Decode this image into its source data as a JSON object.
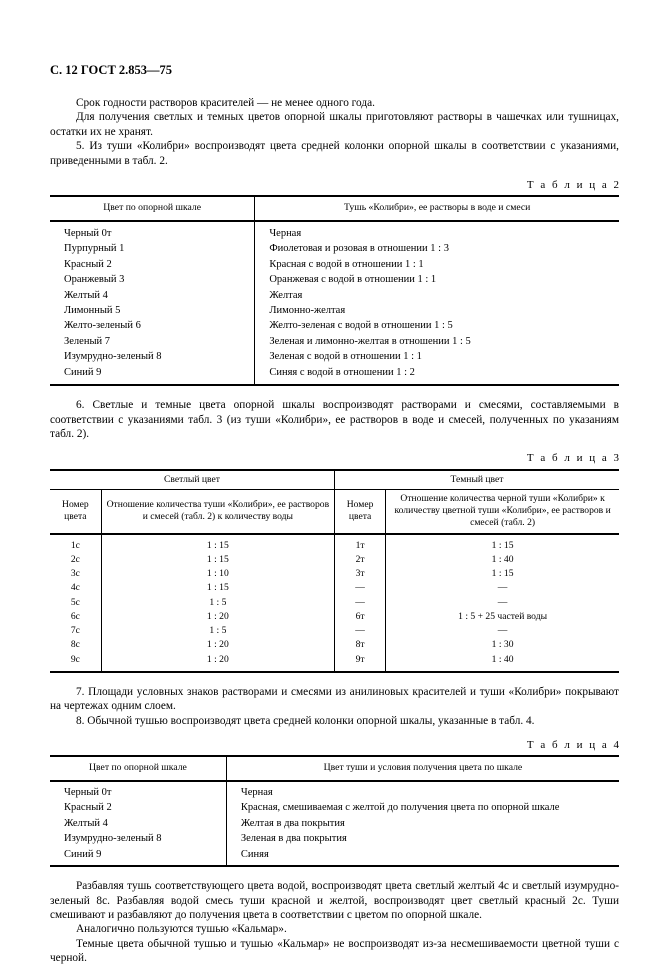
{
  "header": "С. 12 ГОСТ 2.853—75",
  "para1": "Срок годности растворов красителей — не менее одного года.",
  "para2": "Для получения светлых и темных цветов опорной шкалы приготовляют растворы в чашечках или тушницах, остатки их не хранят.",
  "para3": "5. Из туши «Колибри» воспроизводят цвета средней колонки опорной шкалы в соответствии с указаниями, приведенными в табл. 2.",
  "t2label": "Т а б л и ц а",
  "t2num": "2",
  "t2": {
    "h1": "Цвет по опорной шкале",
    "h2": "Тушь «Колибри», ее растворы в воде и смеси",
    "rows": [
      {
        "a": "Черный 0т",
        "b": "Черная"
      },
      {
        "a": "Пурпурный 1",
        "b": "Фиолетовая и розовая в отношении 1 : 3"
      },
      {
        "a": "Красный 2",
        "b": "Красная с водой в отношении 1 : 1"
      },
      {
        "a": "Оранжевый 3",
        "b": "Оранжевая с водой в отношении 1 : 1"
      },
      {
        "a": "Желтый 4",
        "b": "Желтая"
      },
      {
        "a": "Лимонный 5",
        "b": "Лимонно-желтая"
      },
      {
        "a": "Желто-зеленый 6",
        "b": "Желто-зеленая с водой в отношении 1 : 5"
      },
      {
        "a": "Зеленый 7",
        "b": "Зеленая и лимонно-желтая в отношении 1 : 5"
      },
      {
        "a": "Изумрудно-зеленый 8",
        "b": "Зеленая с водой в отношении 1 : 1"
      },
      {
        "a": "Синий 9",
        "b": "Синяя с водой в отношении 1 : 2"
      }
    ]
  },
  "para4": "6. Светлые и темные цвета опорной шкалы воспроизводят растворами и смесями, составляемыми в соответствии с указаниями табл. 3 (из туши «Колибри», ее растворов в воде и смесей, полученных по указаниям табл. 2).",
  "t3label": "Т а б л и ц а",
  "t3num": "3",
  "t3": {
    "g1": "Светлый цвет",
    "g2": "Темный цвет",
    "h1": "Номер цвета",
    "h2": "Отношение количества туши «Колибри», ее растворов и смесей (табл. 2) к количеству воды",
    "h3": "Номер цвета",
    "h4": "Отношение количества черной туши «Колибри» к количеству цветной туши «Колибри», ее растворов и смесей (табл. 2)",
    "rows": [
      {
        "a": "1с",
        "b": "1 : 15",
        "c": "1т",
        "d": "1 : 15"
      },
      {
        "a": "2с",
        "b": "1 : 15",
        "c": "2т",
        "d": "1 : 40"
      },
      {
        "a": "3с",
        "b": "1 : 10",
        "c": "3т",
        "d": "1 : 15"
      },
      {
        "a": "4с",
        "b": "1 : 15",
        "c": "—",
        "d": "—"
      },
      {
        "a": "5с",
        "b": "1 : 5",
        "c": "—",
        "d": "—"
      },
      {
        "a": "6с",
        "b": "1 : 20",
        "c": "6т",
        "d": "1 : 5 + 25 частей воды"
      },
      {
        "a": "7с",
        "b": "1 : 5",
        "c": "—",
        "d": "—"
      },
      {
        "a": "8с",
        "b": "1 : 20",
        "c": "8т",
        "d": "1 : 30"
      },
      {
        "a": "9с",
        "b": "1 : 20",
        "c": "9т",
        "d": "1 : 40"
      }
    ]
  },
  "para5": "7. Площади условных знаков растворами и смесями из анилиновых красителей и туши «Колибри» покрывают на чертежах одним слоем.",
  "para6": "8. Обычной тушью воспроизводят цвета средней колонки опорной шкалы, указанные в табл. 4.",
  "t4label": "Т а б л и ц а",
  "t4num": "4",
  "t4": {
    "h1": "Цвет по опорной шкале",
    "h2": "Цвет туши и условия получения цвета по шкале",
    "rows": [
      {
        "a": "Черный 0т",
        "b": "Черная"
      },
      {
        "a": "Красный 2",
        "b": "Красная, смешиваемая с желтой до получения цвета по опорной шкале"
      },
      {
        "a": "Желтый 4",
        "b": "Желтая в два покрытия"
      },
      {
        "a": "Изумрудно-зеленый 8",
        "b": "Зеленая в два покрытия"
      },
      {
        "a": "Синий 9",
        "b": "Синяя"
      }
    ]
  },
  "para7": "Разбавляя тушь соответствующего цвета водой, воспроизводят цвета светлый желтый 4с и светлый изумрудно-зеленый 8с. Разбавляя водой смесь туши красной и желтой, воспроизводят цвет светлый красный 2с. Туши смешивают и разбавляют до получения цвета в соответствии с цветом по опорной шкале.",
  "para8": "Аналогично пользуются тушью «Кальмар».",
  "para9": "Темные цвета обычной тушью и тушью «Кальмар» не воспроизводят из-за несмешиваемости цветной туши с черной."
}
